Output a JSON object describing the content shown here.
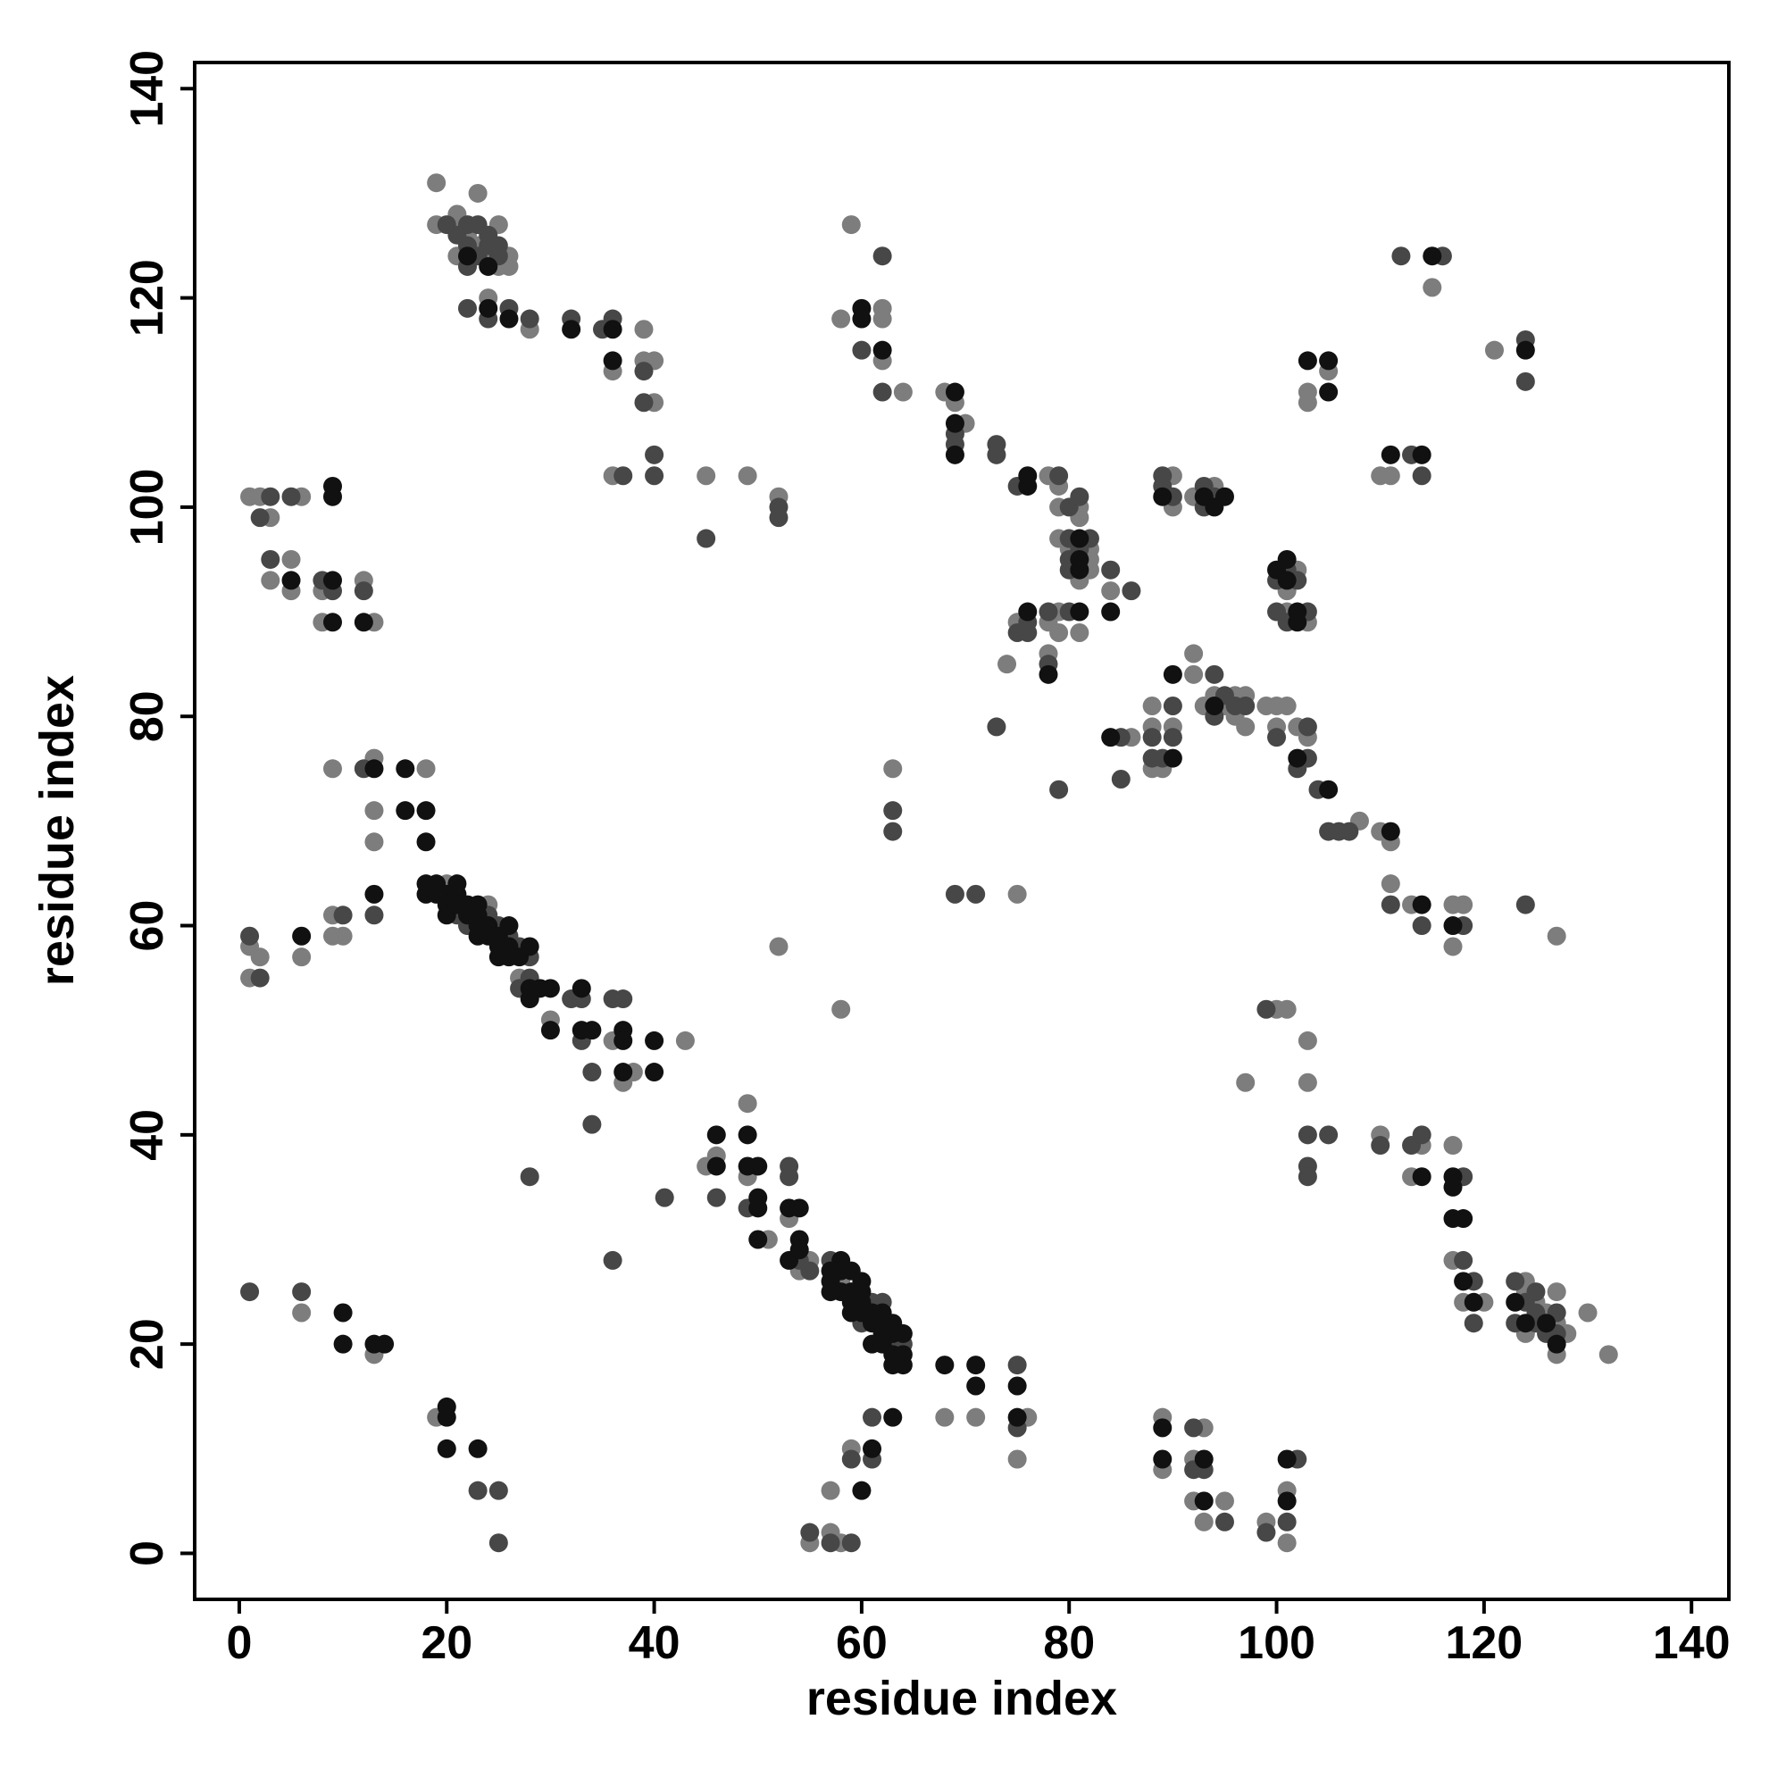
{
  "chart_data": {
    "type": "scatter",
    "xlabel": "residue index",
    "ylabel": "residue index",
    "xlim": [
      -4.3,
      143.6
    ],
    "ylim": [
      -4.4,
      142.5
    ],
    "xticks": [
      0,
      20,
      40,
      60,
      80,
      100,
      120,
      140
    ],
    "yticks": [
      0,
      20,
      40,
      60,
      80,
      100,
      120,
      140
    ],
    "grid": false,
    "series": [
      {
        "color": "#7d7d7d",
        "x": [
          19,
          19,
          21,
          21,
          22,
          23,
          25,
          23,
          26,
          24,
          21,
          25,
          26,
          24,
          28,
          36,
          39,
          39,
          40,
          40,
          36,
          45,
          49,
          52,
          1,
          2,
          3,
          6,
          3,
          5,
          5,
          8,
          8,
          12,
          13,
          59,
          58,
          62,
          62,
          62,
          64,
          68,
          69,
          70,
          78,
          79,
          79,
          81,
          81,
          79,
          80,
          82,
          82,
          82,
          81,
          84,
          79,
          78,
          79,
          81,
          75,
          74,
          78,
          86,
          88,
          88,
          88,
          89,
          90,
          92,
          92,
          93,
          94,
          95,
          96,
          96,
          97,
          97,
          99,
          100,
          100,
          101,
          102,
          103,
          108,
          110,
          111,
          111,
          113,
          117,
          118,
          117,
          127,
          90,
          90,
          92,
          94,
          101,
          102,
          101,
          103,
          103,
          103,
          105,
          110,
          111,
          115,
          121,
          63,
          75,
          52,
          58,
          1,
          1,
          2,
          6,
          9,
          9,
          10,
          9,
          13,
          13,
          13,
          18,
          20,
          24,
          27,
          30,
          36,
          37,
          38,
          43,
          45,
          46,
          49,
          49,
          51,
          53,
          54,
          55,
          58,
          68,
          71,
          76,
          75,
          59,
          57,
          55,
          57,
          58,
          6,
          13,
          19,
          89,
          89,
          93,
          92,
          92,
          93,
          95,
          99,
          101,
          101,
          100,
          101,
          97,
          103,
          103,
          110,
          114,
          113,
          117,
          117,
          118,
          120,
          124,
          124,
          125,
          126,
          124,
          127,
          127,
          128,
          127,
          130,
          132
        ],
        "y": [
          131,
          127,
          127,
          128,
          126,
          130,
          127,
          125,
          124,
          124,
          124,
          123,
          123,
          120,
          117,
          113,
          117,
          114,
          114,
          110,
          103,
          103,
          103,
          101,
          101,
          101,
          99,
          101,
          93,
          95,
          92,
          92,
          89,
          93,
          89,
          127,
          118,
          119,
          118,
          114,
          111,
          111,
          110,
          108,
          103,
          102,
          100,
          100,
          99,
          97,
          96,
          96,
          95,
          94,
          93,
          92,
          90,
          89,
          88,
          88,
          89,
          85,
          86,
          78,
          81,
          79,
          75,
          75,
          79,
          86,
          84,
          81,
          82,
          81,
          82,
          80,
          82,
          79,
          81,
          81,
          79,
          81,
          79,
          78,
          70,
          69,
          68,
          64,
          62,
          62,
          62,
          58,
          59,
          103,
          100,
          101,
          102,
          92,
          94,
          90,
          89,
          111,
          110,
          113,
          103,
          103,
          121,
          115,
          75,
          63,
          58,
          52,
          58,
          55,
          57,
          57,
          61,
          59,
          59,
          75,
          76,
          71,
          68,
          75,
          64,
          62,
          55,
          51,
          49,
          45,
          46,
          49,
          37,
          38,
          43,
          36,
          30,
          32,
          27,
          28,
          26,
          13,
          13,
          13,
          9,
          10,
          6,
          1,
          2,
          1,
          23,
          19,
          13,
          13,
          8,
          12,
          9,
          5,
          3,
          5,
          3,
          6,
          1,
          52,
          52,
          45,
          49,
          45,
          40,
          39,
          36,
          39,
          28,
          24,
          24,
          26,
          25,
          24,
          23,
          21,
          22,
          19,
          21,
          25,
          23,
          19
        ]
      },
      {
        "color": "#474747",
        "x": [
          20,
          22,
          23,
          24,
          21,
          22,
          24,
          25,
          23,
          25,
          22,
          22,
          24,
          26,
          28,
          32,
          35,
          36,
          39,
          39,
          37,
          40,
          40,
          45,
          52,
          52,
          3,
          2,
          5,
          3,
          8,
          9,
          12,
          62,
          60,
          62,
          69,
          69,
          73,
          73,
          75,
          79,
          80,
          81,
          80,
          82,
          81,
          80,
          80,
          84,
          86,
          80,
          78,
          76,
          75,
          76,
          78,
          73,
          79,
          85,
          85,
          88,
          88,
          89,
          90,
          90,
          94,
          94,
          95,
          96,
          97,
          100,
          103,
          103,
          102,
          104,
          105,
          106,
          107,
          111,
          114,
          118,
          124,
          89,
          89,
          90,
          93,
          93,
          94,
          100,
          101,
          102,
          100,
          101,
          103,
          113,
          114,
          112,
          116,
          124,
          124,
          63,
          63,
          69,
          71,
          1,
          2,
          10,
          12,
          13,
          21,
          22,
          24,
          25,
          26,
          27,
          28,
          28,
          27,
          32,
          33,
          33,
          36,
          37,
          34,
          34,
          28,
          36,
          41,
          46,
          49,
          53,
          53,
          54,
          55,
          57,
          60,
          61,
          62,
          63,
          64,
          75,
          75,
          61,
          61,
          59,
          55,
          57,
          59,
          1,
          6,
          23,
          25,
          25,
          92,
          92,
          93,
          95,
          99,
          102,
          101,
          99,
          103,
          105,
          103,
          103,
          110,
          113,
          114,
          118,
          118,
          119,
          119,
          123,
          125,
          124,
          123,
          125,
          125,
          127,
          127,
          126
        ],
        "y": [
          127,
          127,
          127,
          126,
          126,
          125,
          125,
          125,
          124,
          124,
          123,
          119,
          118,
          119,
          118,
          118,
          117,
          118,
          113,
          110,
          103,
          105,
          103,
          97,
          100,
          99,
          101,
          99,
          101,
          95,
          93,
          92,
          92,
          124,
          115,
          111,
          107,
          106,
          106,
          105,
          102,
          103,
          100,
          101,
          97,
          97,
          96,
          95,
          94,
          94,
          92,
          90,
          90,
          89,
          88,
          88,
          85,
          79,
          73,
          78,
          74,
          78,
          76,
          76,
          78,
          81,
          84,
          80,
          82,
          81,
          81,
          78,
          79,
          76,
          75,
          73,
          69,
          69,
          69,
          62,
          60,
          60,
          62,
          103,
          102,
          101,
          102,
          100,
          101,
          93,
          94,
          93,
          90,
          89,
          90,
          105,
          103,
          124,
          124,
          116,
          112,
          71,
          69,
          63,
          63,
          59,
          55,
          61,
          75,
          61,
          61,
          60,
          61,
          60,
          59,
          58,
          57,
          55,
          54,
          53,
          53,
          49,
          53,
          53,
          46,
          41,
          36,
          28,
          34,
          34,
          33,
          37,
          36,
          28,
          27,
          28,
          22,
          24,
          24,
          20,
          20,
          18,
          12,
          13,
          9,
          9,
          2,
          1,
          1,
          25,
          25,
          6,
          6,
          1,
          12,
          8,
          8,
          3,
          2,
          9,
          3,
          52,
          40,
          40,
          37,
          36,
          39,
          39,
          40,
          36,
          28,
          26,
          22,
          26,
          25,
          24,
          22,
          22,
          23,
          23,
          21,
          21
        ]
      },
      {
        "color": "#111111",
        "x": [
          22,
          24,
          24,
          26,
          32,
          36,
          36,
          9,
          9,
          5,
          9,
          9,
          12,
          60,
          60,
          62,
          69,
          69,
          69,
          76,
          76,
          81,
          81,
          81,
          84,
          81,
          76,
          78,
          84,
          90,
          90,
          94,
          102,
          105,
          111,
          114,
          117,
          89,
          94,
          95,
          93,
          100,
          101,
          101,
          102,
          102,
          103,
          105,
          105,
          111,
          114,
          115,
          124,
          6,
          13,
          13,
          16,
          16,
          18,
          18,
          18,
          18,
          19,
          19,
          20,
          20,
          20,
          21,
          21,
          21,
          22,
          22,
          23,
          23,
          23,
          23,
          24,
          24,
          25,
          25,
          25,
          26,
          26,
          26,
          27,
          28,
          28,
          28,
          29,
          30,
          30,
          33,
          33,
          34,
          37,
          37,
          37,
          40,
          40,
          46,
          46,
          49,
          49,
          50,
          50,
          50,
          50,
          53,
          54,
          53,
          54,
          54,
          57,
          57,
          57,
          58,
          58,
          58,
          59,
          59,
          59,
          59,
          60,
          60,
          60,
          60,
          61,
          61,
          61,
          62,
          62,
          62,
          62,
          63,
          63,
          63,
          63,
          64,
          64,
          64,
          68,
          71,
          71,
          75,
          75,
          63,
          61,
          60,
          10,
          10,
          13,
          14,
          20,
          20,
          20,
          23,
          89,
          89,
          93,
          93,
          101,
          101,
          114,
          117,
          117,
          117,
          118,
          118,
          119,
          123,
          124,
          126,
          127
        ],
        "y": [
          124,
          123,
          119,
          118,
          117,
          117,
          114,
          102,
          101,
          93,
          93,
          89,
          89,
          119,
          118,
          115,
          111,
          108,
          105,
          103,
          102,
          97,
          95,
          94,
          90,
          90,
          90,
          84,
          78,
          76,
          84,
          81,
          76,
          73,
          69,
          62,
          60,
          101,
          100,
          101,
          101,
          94,
          95,
          93,
          90,
          89,
          114,
          114,
          111,
          105,
          105,
          124,
          115,
          59,
          75,
          63,
          75,
          71,
          71,
          68,
          64,
          63,
          64,
          63,
          63,
          62,
          61,
          64,
          63,
          62,
          62,
          61,
          62,
          61,
          60,
          59,
          60,
          59,
          59,
          58,
          57,
          60,
          58,
          57,
          57,
          58,
          54,
          53,
          54,
          54,
          50,
          54,
          50,
          50,
          50,
          49,
          46,
          49,
          46,
          40,
          37,
          40,
          37,
          37,
          34,
          33,
          30,
          33,
          33,
          28,
          30,
          29,
          27,
          26,
          25,
          28,
          27,
          25,
          27,
          25,
          24,
          23,
          26,
          25,
          24,
          23,
          23,
          22,
          20,
          23,
          22,
          21,
          20,
          22,
          21,
          19,
          18,
          21,
          19,
          18,
          18,
          18,
          16,
          16,
          13,
          13,
          10,
          6,
          23,
          20,
          20,
          20,
          14,
          13,
          10,
          10,
          12,
          9,
          9,
          5,
          9,
          5,
          36,
          36,
          35,
          32,
          32,
          26,
          24,
          24,
          22,
          22,
          20
        ]
      }
    ]
  }
}
